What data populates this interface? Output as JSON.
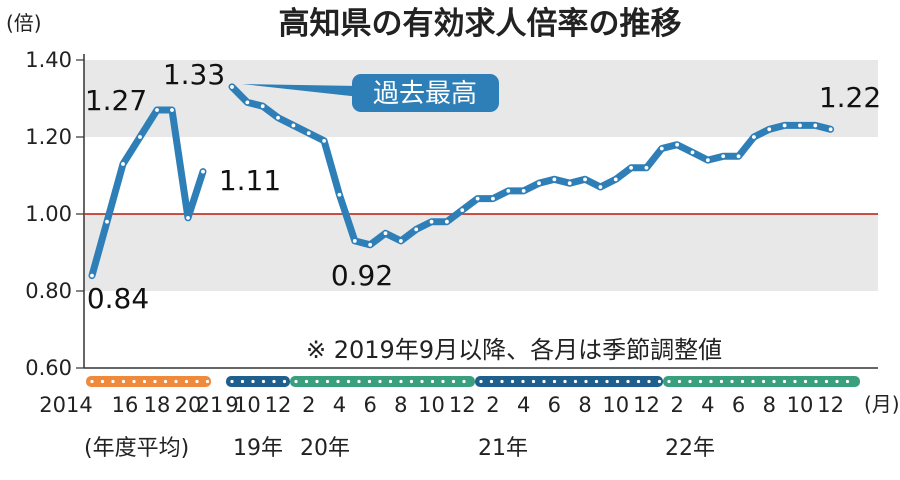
{
  "chart_data": {
    "type": "line",
    "title": "高知県の有効求人倍率の推移",
    "y_unit": "(倍)",
    "x_unit": "(月)",
    "ylim": [
      0.6,
      1.4
    ],
    "y_ticks": [
      "0.60",
      "0.80",
      "1.00",
      "1.20",
      "1.40"
    ],
    "reference_line": 1.0,
    "note": "※ 2019年9月以降、各月は季節調整値",
    "callout": "過去最高",
    "annual": {
      "caption": "(年度平均)",
      "x": [
        "2014",
        "2015",
        "2016",
        "2017",
        "2018",
        "2019",
        "2020",
        "2021"
      ],
      "values": [
        0.84,
        0.98,
        1.13,
        1.2,
        1.27,
        1.27,
        0.99,
        1.11
      ],
      "tick_labels": [
        "2014",
        "16",
        "18",
        "20",
        "21"
      ]
    },
    "monthly": {
      "x": [
        "2019-09",
        "2019-10",
        "2019-11",
        "2019-12",
        "2020-01",
        "2020-02",
        "2020-03",
        "2020-04",
        "2020-05",
        "2020-06",
        "2020-07",
        "2020-08",
        "2020-09",
        "2020-10",
        "2020-11",
        "2020-12",
        "2021-01",
        "2021-02",
        "2021-03",
        "2021-04",
        "2021-05",
        "2021-06",
        "2021-07",
        "2021-08",
        "2021-09",
        "2021-10",
        "2021-11",
        "2021-12",
        "2022-01",
        "2022-02",
        "2022-03",
        "2022-04",
        "2022-05",
        "2022-06",
        "2022-07",
        "2022-08",
        "2022-09",
        "2022-10",
        "2022-11",
        "2022-12"
      ],
      "values": [
        1.33,
        1.29,
        1.28,
        1.25,
        1.23,
        1.21,
        1.19,
        1.05,
        0.93,
        0.92,
        0.95,
        0.93,
        0.96,
        0.98,
        0.98,
        1.01,
        1.04,
        1.04,
        1.06,
        1.06,
        1.08,
        1.09,
        1.08,
        1.09,
        1.07,
        1.09,
        1.12,
        1.12,
        1.17,
        1.18,
        1.16,
        1.14,
        1.15,
        1.15,
        1.2,
        1.22,
        1.23,
        1.23,
        1.23,
        1.22
      ],
      "tick_labels": [
        "9",
        "10",
        "12",
        "2",
        "4",
        "6",
        "8",
        "10",
        "12",
        "2",
        "4",
        "6",
        "8",
        "10",
        "12",
        "2",
        "4",
        "6",
        "8",
        "10",
        "12"
      ],
      "year_labels": [
        "19年",
        "20年",
        "21年",
        "22年"
      ]
    },
    "data_labels": [
      "1.27",
      "1.33",
      "1.11",
      "0.84",
      "0.92",
      "1.22"
    ]
  }
}
